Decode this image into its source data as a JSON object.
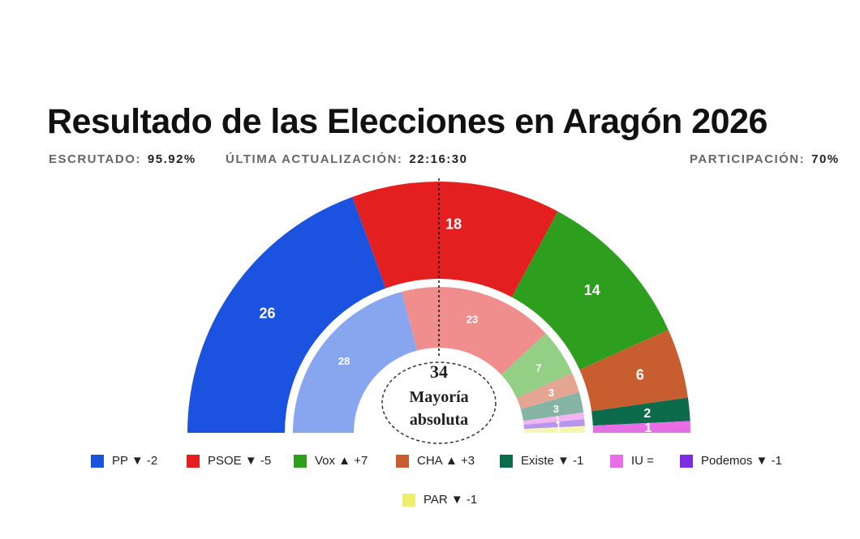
{
  "header": {
    "title": "Resultado de las Elecciones en Aragón 2026",
    "escrutado_label": "ESCRUTADO:",
    "escrutado_value": "95.92%",
    "actualizacion_label": "ÚLTIMA ACTUALIZACIÓN:",
    "actualizacion_value": "22:16:30",
    "participacion_label": "PARTICIPACIÓN:",
    "participacion_value": "70%"
  },
  "majority": {
    "seats": "34",
    "line1": "Mayoría",
    "line2": "absoluta"
  },
  "chart_data": {
    "type": "pie",
    "subtype": "semicircle-parliament",
    "total_seats_outer": 67,
    "majority_seats": 34,
    "series": [
      {
        "name": "outer",
        "categories": [
          "PP",
          "PSOE",
          "Vox",
          "CHA",
          "Existe",
          "IU"
        ],
        "values": [
          26,
          18,
          14,
          6,
          2,
          1
        ],
        "labels": [
          "26",
          "18",
          "14",
          "6",
          "2",
          "1"
        ]
      },
      {
        "name": "inner",
        "categories": [
          "PP",
          "PSOE",
          "Vox",
          "CHA",
          "Existe",
          "IU",
          "Podemos",
          "PAR"
        ],
        "values": [
          28,
          23,
          7,
          3,
          3,
          1,
          1,
          1
        ],
        "labels": [
          "28",
          "23",
          "7",
          "3",
          "3",
          "1",
          "1",
          "1"
        ]
      }
    ],
    "legend_position": "bottom",
    "legend": [
      {
        "party": "PP",
        "change": "▼ -2",
        "color": "#1b52e0"
      },
      {
        "party": "PSOE",
        "change": "▼ -5",
        "color": "#e3201f"
      },
      {
        "party": "Vox",
        "change": "▲ +7",
        "color": "#2e9e1e"
      },
      {
        "party": "CHA",
        "change": "▲ +3",
        "color": "#c85e2f"
      },
      {
        "party": "Existe",
        "change": "▼ -1",
        "color": "#0c6b4a"
      },
      {
        "party": "IU",
        "change": "=",
        "color": "#e86ee8"
      },
      {
        "party": "Podemos",
        "change": "▼ -1",
        "color": "#7b2ee0"
      },
      {
        "party": "PAR",
        "change": "▼ -1",
        "color": "#efef6e"
      }
    ],
    "colors_inner": {
      "PP": "#87a6ef",
      "PSOE": "#f08e8e",
      "Vox": "#93d086",
      "CHA": "#e4a692",
      "Existe": "#86b4a4",
      "IU": "#f2b5f2",
      "Podemos": "#b794ee",
      "PAR": "#f6f6b2"
    }
  }
}
